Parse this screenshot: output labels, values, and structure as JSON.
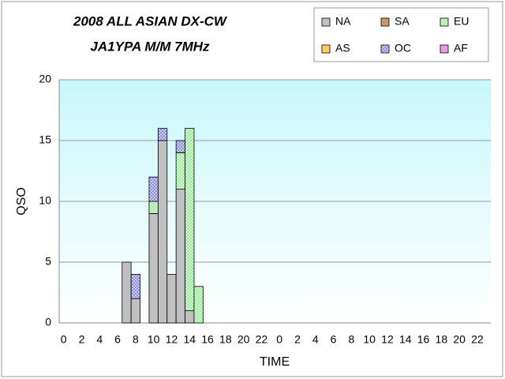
{
  "chart_data": {
    "type": "stacked-bar",
    "title": "2008 ALL ASIAN DX-CW",
    "subtitle": "JA1YPA  M/M  7MHz",
    "x_label": "TIME",
    "y_label": "QSO",
    "categories": [
      "0",
      null,
      "2",
      null,
      "4",
      null,
      "6",
      null,
      "8",
      null,
      "10",
      null,
      "12",
      null,
      "14",
      null,
      "16",
      null,
      "18",
      null,
      "20",
      null,
      "22",
      null,
      "0",
      null,
      "2",
      null,
      "4",
      null,
      "6",
      null,
      "8",
      null,
      "10",
      null,
      "12",
      null,
      "14",
      null,
      "16",
      null,
      "18",
      null,
      "20",
      null,
      "22",
      null
    ],
    "series": [
      {
        "name": "NA",
        "color": "#c0c0c0",
        "hatch": false,
        "values": [
          0,
          0,
          0,
          0,
          0,
          0,
          0,
          5,
          2,
          0,
          9,
          15,
          4,
          11,
          1,
          0,
          0,
          0,
          0,
          0,
          0,
          0,
          0,
          0,
          0,
          0,
          0,
          0,
          0,
          0,
          0,
          0,
          0,
          0,
          0,
          0,
          0,
          0,
          0,
          0,
          0,
          0,
          0,
          0,
          0,
          0,
          0,
          0
        ]
      },
      {
        "name": "SA",
        "color": "#cc9966",
        "hatch": false,
        "values": [
          0,
          0,
          0,
          0,
          0,
          0,
          0,
          0,
          0,
          0,
          0,
          0,
          0,
          0,
          0,
          0,
          0,
          0,
          0,
          0,
          0,
          0,
          0,
          0,
          0,
          0,
          0,
          0,
          0,
          0,
          0,
          0,
          0,
          0,
          0,
          0,
          0,
          0,
          0,
          0,
          0,
          0,
          0,
          0,
          0,
          0,
          0,
          0
        ]
      },
      {
        "name": "EU",
        "color": "#99ee99",
        "hatch": true,
        "values": [
          0,
          0,
          0,
          0,
          0,
          0,
          0,
          0,
          0,
          0,
          1,
          0,
          0,
          3,
          15,
          3,
          0,
          0,
          0,
          0,
          0,
          0,
          0,
          0,
          0,
          0,
          0,
          0,
          0,
          0,
          0,
          0,
          0,
          0,
          0,
          0,
          0,
          0,
          0,
          0,
          0,
          0,
          0,
          0,
          0,
          0,
          0,
          0
        ]
      },
      {
        "name": "AS",
        "color": "#ffcc66",
        "hatch": false,
        "values": [
          0,
          0,
          0,
          0,
          0,
          0,
          0,
          0,
          0,
          0,
          0,
          0,
          0,
          0,
          0,
          0,
          0,
          0,
          0,
          0,
          0,
          0,
          0,
          0,
          0,
          0,
          0,
          0,
          0,
          0,
          0,
          0,
          0,
          0,
          0,
          0,
          0,
          0,
          0,
          0,
          0,
          0,
          0,
          0,
          0,
          0,
          0,
          0
        ]
      },
      {
        "name": "OC",
        "color": "#8888ee",
        "hatch": true,
        "values": [
          0,
          0,
          0,
          0,
          0,
          0,
          0,
          0,
          2,
          0,
          2,
          1,
          0,
          1,
          0,
          0,
          0,
          0,
          0,
          0,
          0,
          0,
          0,
          0,
          0,
          0,
          0,
          0,
          0,
          0,
          0,
          0,
          0,
          0,
          0,
          0,
          0,
          0,
          0,
          0,
          0,
          0,
          0,
          0,
          0,
          0,
          0,
          0
        ]
      },
      {
        "name": "AF",
        "color": "#ee99dd",
        "hatch": false,
        "values": [
          0,
          0,
          0,
          0,
          0,
          0,
          0,
          0,
          0,
          0,
          0,
          0,
          0,
          0,
          0,
          0,
          0,
          0,
          0,
          0,
          0,
          0,
          0,
          0,
          0,
          0,
          0,
          0,
          0,
          0,
          0,
          0,
          0,
          0,
          0,
          0,
          0,
          0,
          0,
          0,
          0,
          0,
          0,
          0,
          0,
          0,
          0,
          0
        ]
      }
    ],
    "ylim": [
      0,
      20
    ],
    "yticks": [
      0,
      5,
      10,
      15,
      20
    ],
    "grid": true,
    "legend": "top-right"
  }
}
